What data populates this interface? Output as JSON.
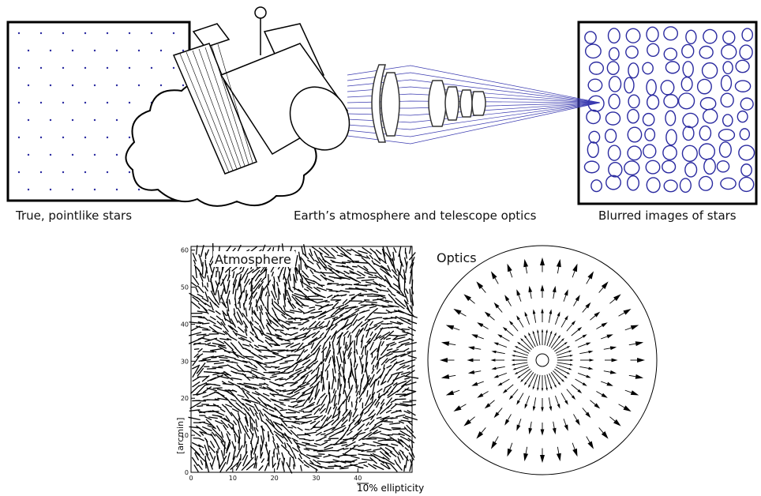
{
  "top": {
    "left_caption": "True, pointlike stars",
    "middle_caption": "Earth’s atmosphere and telescope optics",
    "right_caption": "Blurred images of stars"
  },
  "atmosphere_plot": {
    "label": "Atmosphere",
    "y_label": "[arcmin]",
    "xlim": [
      0,
      53
    ],
    "ylim": [
      0,
      61
    ],
    "xticks": [
      0,
      10,
      20,
      30,
      40
    ],
    "yticks": [
      0,
      10,
      20,
      30,
      40,
      50,
      60
    ],
    "scale_label": "10% ellipticity"
  },
  "optics_plot": {
    "label": "Optics"
  }
}
